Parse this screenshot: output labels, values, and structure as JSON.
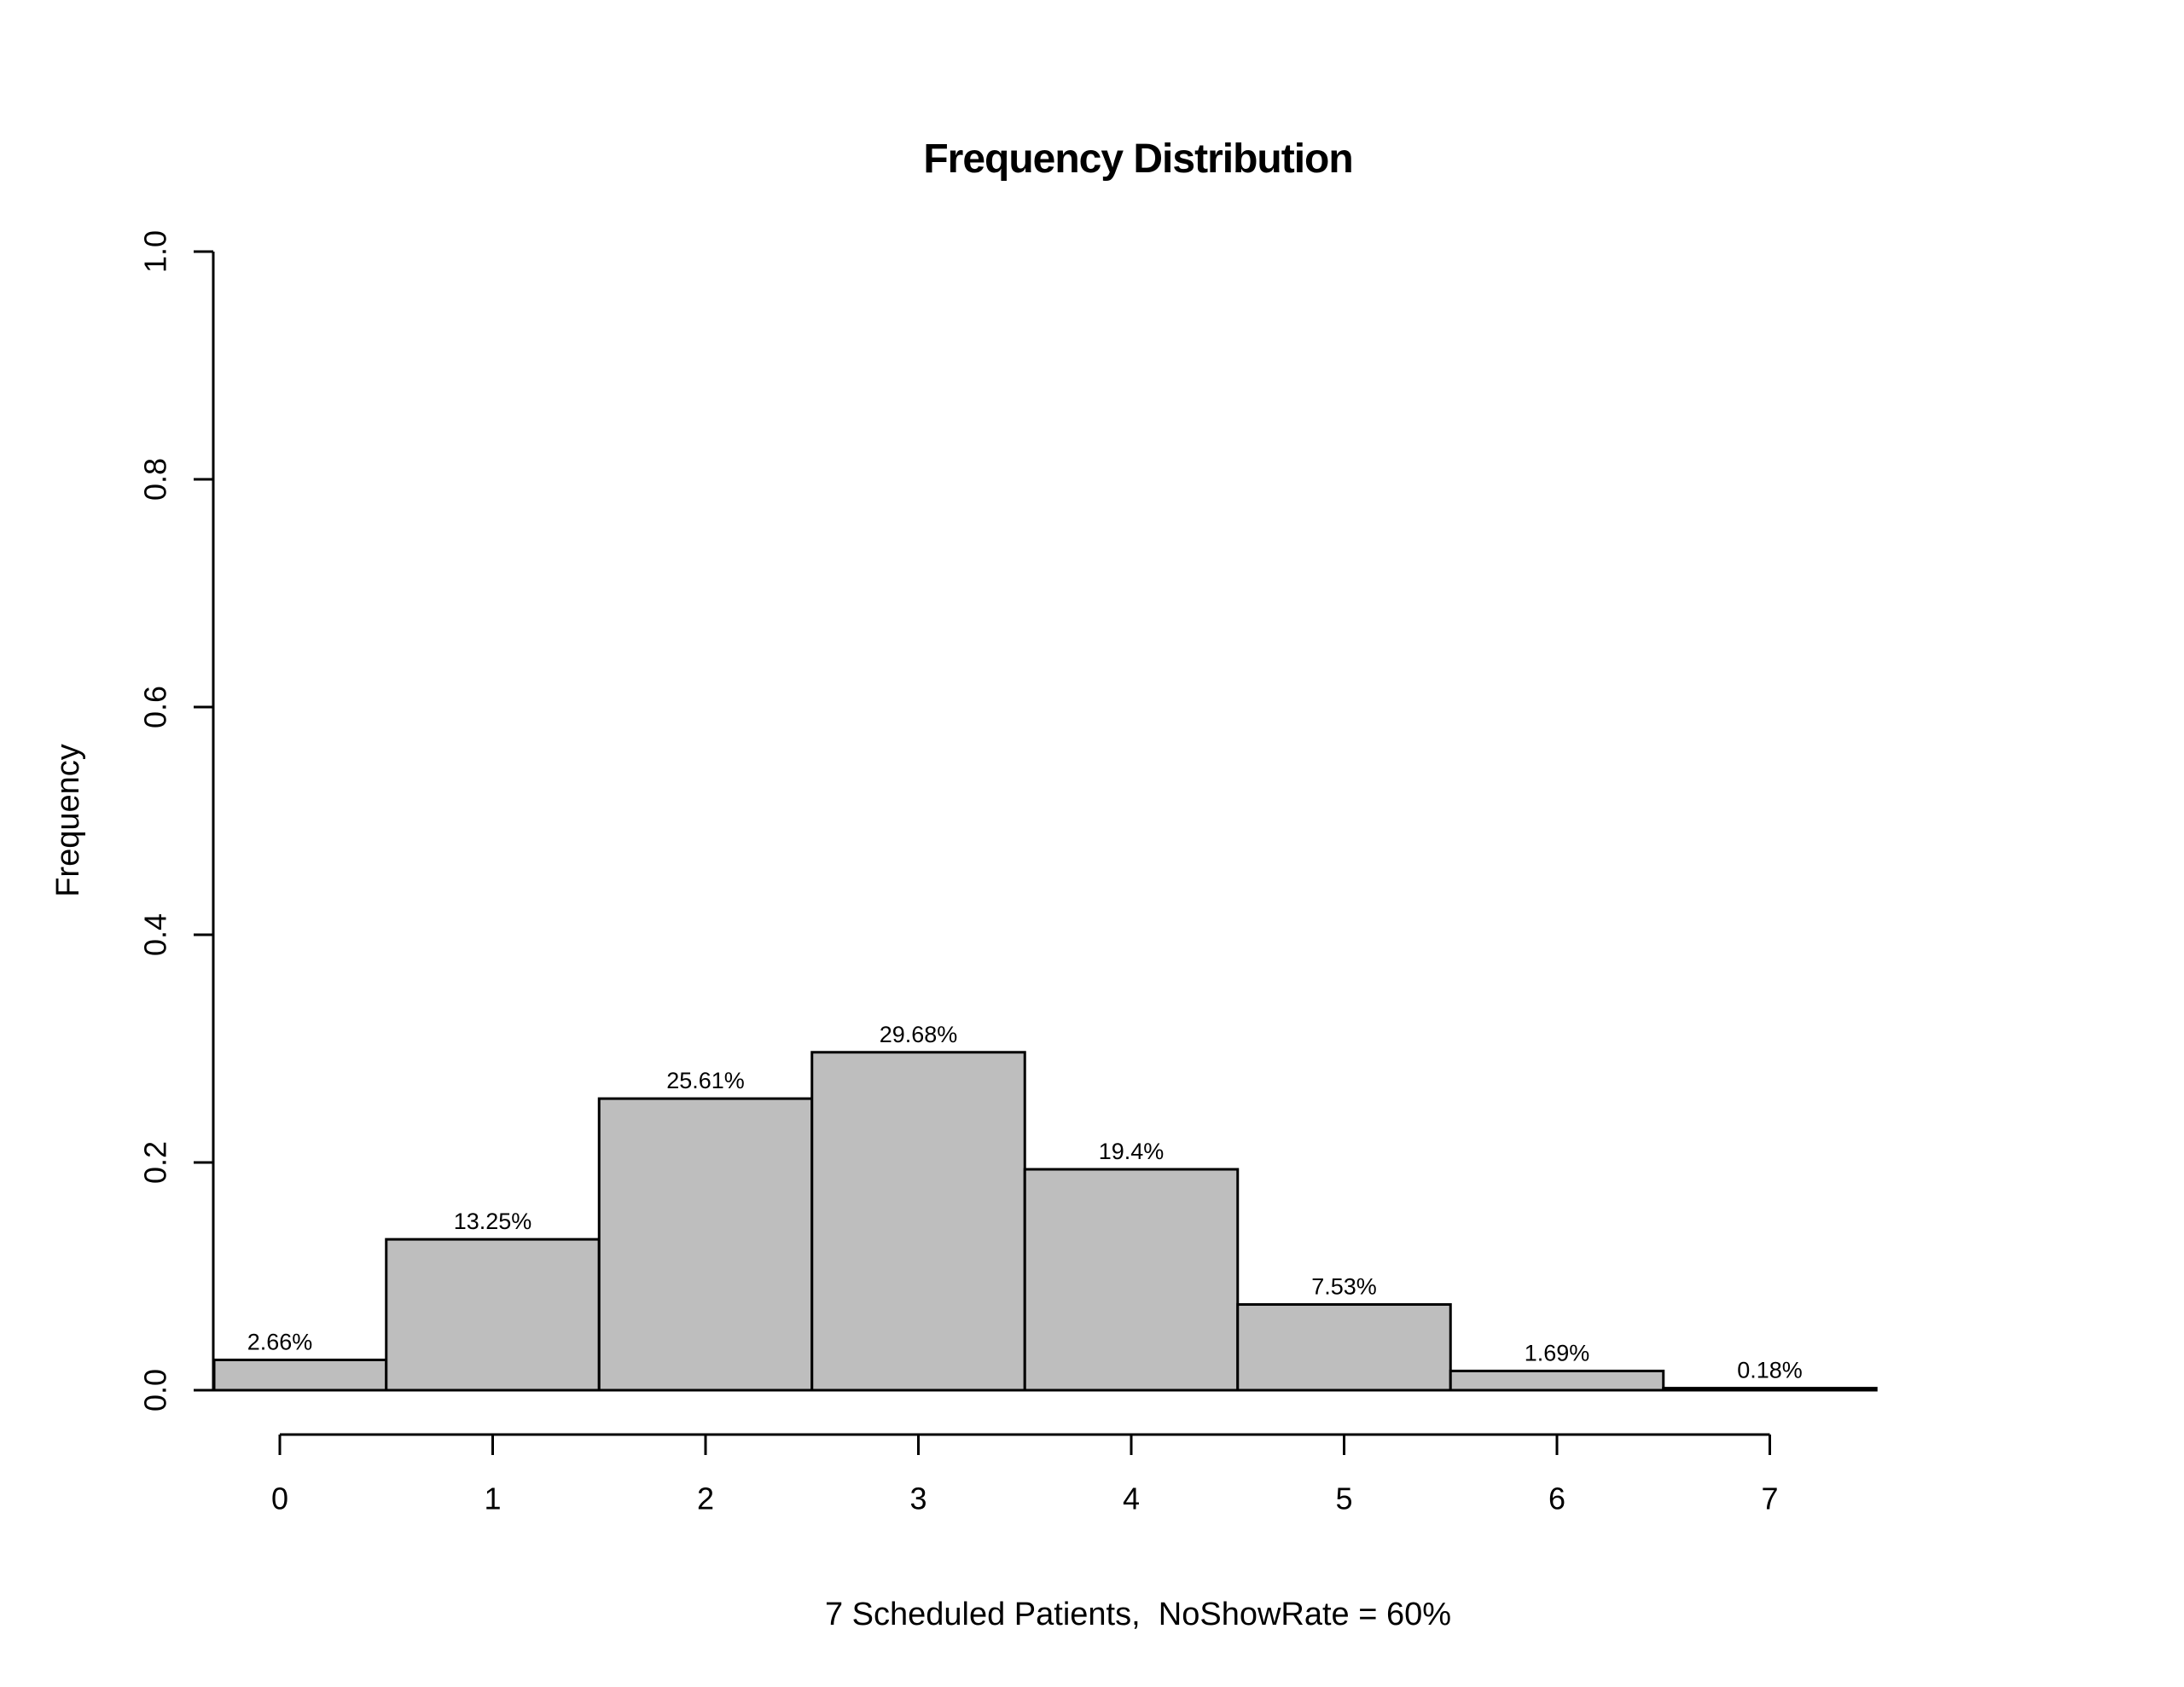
{
  "chart_data": {
    "type": "bar",
    "title": "Frequency Distribution",
    "xlabel": "7 Scheduled Patients,  NoShowRate = 60%",
    "ylabel": "Frequency",
    "categories": [
      0,
      1,
      2,
      3,
      4,
      5,
      6,
      7
    ],
    "values": [
      0.0266,
      0.1325,
      0.2561,
      0.2968,
      0.194,
      0.0753,
      0.0169,
      0.0018
    ],
    "bar_labels": [
      "2.66%",
      "13.25%",
      "25.61%",
      "29.68%",
      "19.4%",
      "7.53%",
      "1.69%",
      "0.18%"
    ],
    "bar_width": 1,
    "ylim": [
      0,
      1
    ],
    "yticks": [
      0,
      0.2,
      0.4,
      0.6,
      0.8,
      1
    ],
    "ytick_labels": [
      "0.0",
      "0.2",
      "0.4",
      "0.6",
      "0.8",
      "1.0"
    ],
    "xticks": [
      0,
      1,
      2,
      3,
      4,
      5,
      6,
      7
    ],
    "xtick_labels": [
      "0",
      "1",
      "2",
      "3",
      "4",
      "5",
      "6",
      "7"
    ],
    "grid": false,
    "legend": false,
    "colors": {
      "background": "#FFFFFF",
      "bar_fill": "#BEBEBE",
      "bar_border": "#000000",
      "axis": "#000000",
      "text": "#000000"
    }
  }
}
